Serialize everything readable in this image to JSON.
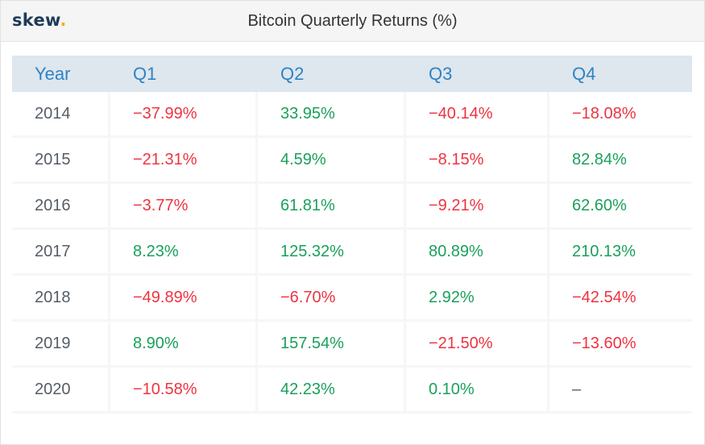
{
  "brand": {
    "name": "skew",
    "dot": "."
  },
  "colors": {
    "negative": "#ee3340",
    "positive": "#1aa05a",
    "header": "#2d84c4",
    "header_bg": "#dee6ee"
  },
  "chart_data": {
    "type": "table",
    "title": "Bitcoin Quarterly Returns (%)",
    "columns": [
      "Year",
      "Q1",
      "Q2",
      "Q3",
      "Q4"
    ],
    "rows": [
      {
        "year": "2014",
        "q1": "−37.99%",
        "q2": "33.95%",
        "q3": "−40.14%",
        "q4": "−18.08%"
      },
      {
        "year": "2015",
        "q1": "−21.31%",
        "q2": "4.59%",
        "q3": "−8.15%",
        "q4": "82.84%"
      },
      {
        "year": "2016",
        "q1": "−3.77%",
        "q2": "61.81%",
        "q3": "−9.21%",
        "q4": "62.60%"
      },
      {
        "year": "2017",
        "q1": "8.23%",
        "q2": "125.32%",
        "q3": "80.89%",
        "q4": "210.13%"
      },
      {
        "year": "2018",
        "q1": "−49.89%",
        "q2": "−6.70%",
        "q3": "2.92%",
        "q4": "−42.54%"
      },
      {
        "year": "2019",
        "q1": "8.90%",
        "q2": "157.54%",
        "q3": "−21.50%",
        "q4": "−13.60%"
      },
      {
        "year": "2020",
        "q1": "−10.58%",
        "q2": "42.23%",
        "q3": "0.10%",
        "q4": "–"
      }
    ]
  }
}
